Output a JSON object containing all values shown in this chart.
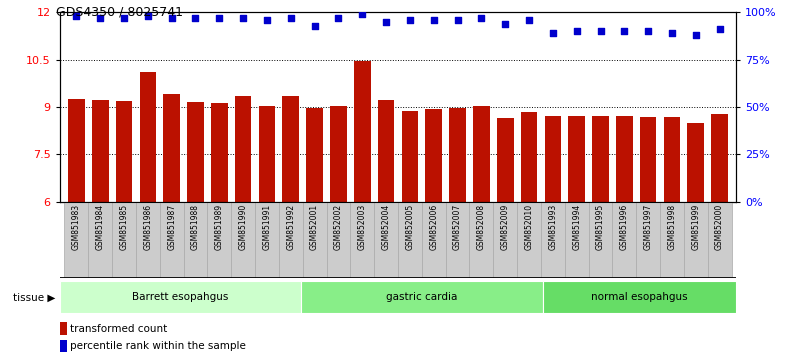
{
  "title": "GDS4350 / 8025741",
  "samples": [
    "GSM851983",
    "GSM851984",
    "GSM851985",
    "GSM851986",
    "GSM851987",
    "GSM851988",
    "GSM851989",
    "GSM851990",
    "GSM851991",
    "GSM851992",
    "GSM852001",
    "GSM852002",
    "GSM852003",
    "GSM852004",
    "GSM852005",
    "GSM852006",
    "GSM852007",
    "GSM852008",
    "GSM852009",
    "GSM852010",
    "GSM851993",
    "GSM851994",
    "GSM851995",
    "GSM851996",
    "GSM851997",
    "GSM851998",
    "GSM851999",
    "GSM852000"
  ],
  "bar_values": [
    9.25,
    9.22,
    9.18,
    10.1,
    9.4,
    9.15,
    9.12,
    9.35,
    9.05,
    9.35,
    8.98,
    9.05,
    10.45,
    9.22,
    8.88,
    8.95,
    8.98,
    9.02,
    8.65,
    8.85,
    8.72,
    8.72,
    8.72,
    8.72,
    8.68,
    8.68,
    8.48,
    8.78
  ],
  "percentile_values": [
    98,
    97,
    97,
    98,
    97,
    97,
    97,
    97,
    96,
    97,
    93,
    97,
    99,
    95,
    96,
    96,
    96,
    97,
    94,
    96,
    89,
    90,
    90,
    90,
    90,
    89,
    88,
    91
  ],
  "groups": [
    {
      "label": "Barrett esopahgus",
      "start": 0,
      "end": 10,
      "color": "#ccffcc"
    },
    {
      "label": "gastric cardia",
      "start": 10,
      "end": 20,
      "color": "#88ee88"
    },
    {
      "label": "normal esopahgus",
      "start": 20,
      "end": 28,
      "color": "#66dd66"
    }
  ],
  "bar_color": "#bb1100",
  "dot_color": "#0000cc",
  "ylim_left": [
    6,
    12
  ],
  "ylim_right": [
    0,
    100
  ],
  "yticks_left": [
    6,
    7.5,
    9,
    10.5,
    12
  ],
  "yticks_right": [
    0,
    25,
    50,
    75,
    100
  ],
  "ytick_labels_right": [
    "0%",
    "25%",
    "50%",
    "75%",
    "100%"
  ],
  "grid_values": [
    7.5,
    9.0,
    10.5
  ],
  "legend_items": [
    {
      "label": "transformed count",
      "color": "#bb1100"
    },
    {
      "label": "percentile rank within the sample",
      "color": "#0000cc"
    }
  ],
  "tissue_label": "tissue",
  "xtick_bg_color": "#cccccc",
  "xtick_border_color": "#aaaaaa"
}
